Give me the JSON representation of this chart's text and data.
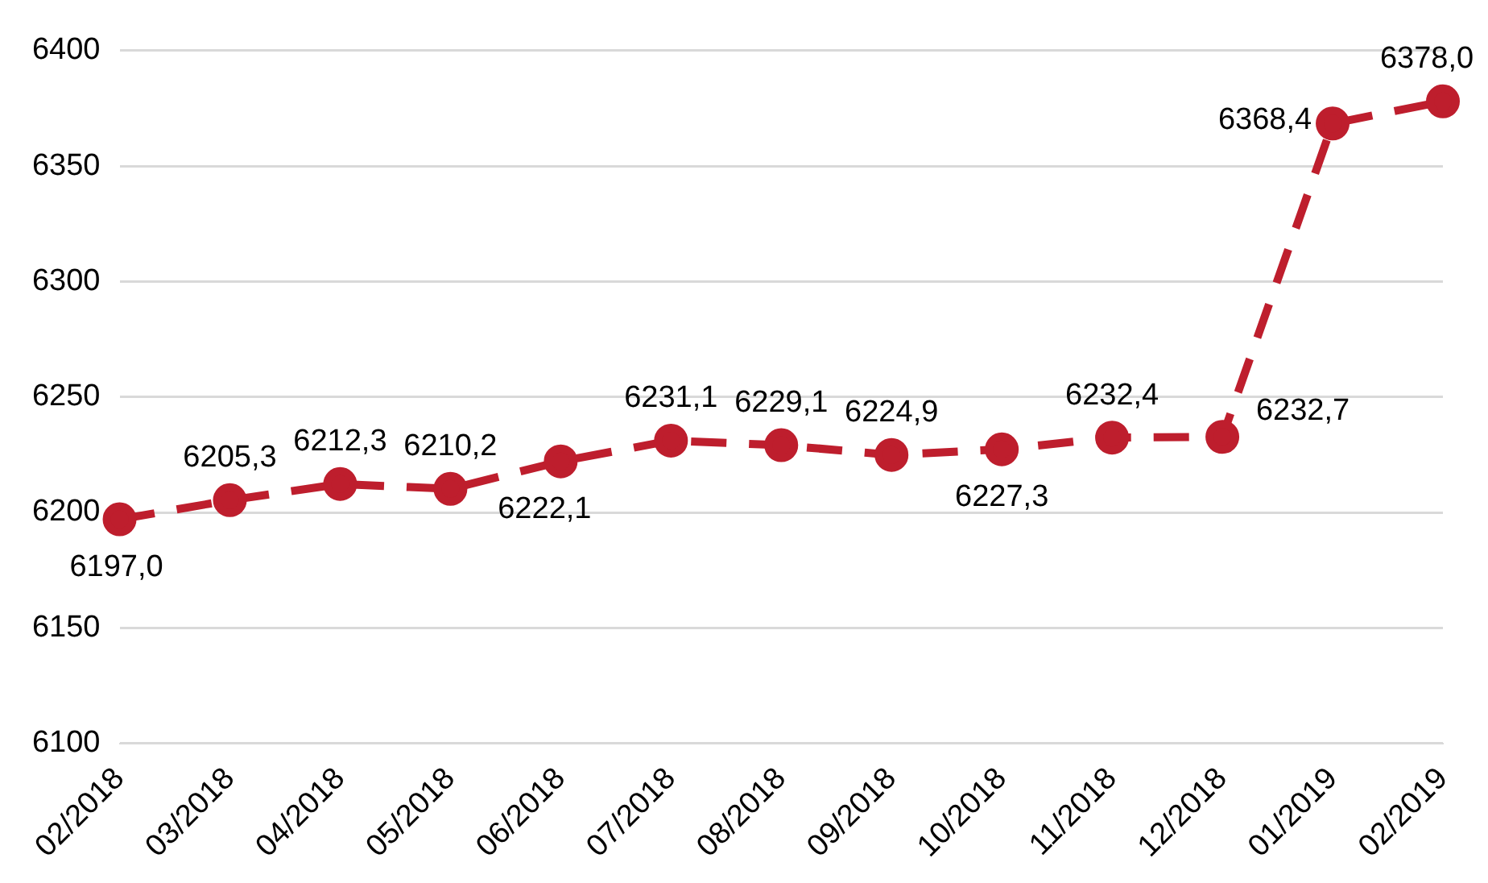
{
  "chart_data": {
    "type": "line",
    "categories": [
      "02/2018",
      "03/2018",
      "04/2018",
      "05/2018",
      "06/2018",
      "07/2018",
      "08/2018",
      "09/2018",
      "10/2018",
      "11/2018",
      "12/2018",
      "01/2019",
      "02/2019"
    ],
    "series": [
      {
        "color": "#be1e2d",
        "values": [
          6197.0,
          6205.3,
          6212.3,
          6210.2,
          6222.1,
          6231.1,
          6229.1,
          6224.9,
          6227.3,
          6232.4,
          6232.7,
          6368.4,
          6378.0
        ],
        "value_labels": [
          "6197,0",
          "6205,3",
          "6212,3",
          "6210,2",
          "6222,1",
          "6231,1",
          "6229,1",
          "6224,9",
          "6227,3",
          "6232,4",
          "6232,7",
          "6368,4",
          "6378,0"
        ]
      }
    ],
    "ylim": [
      6100,
      6400
    ],
    "yticks": [
      6100,
      6150,
      6200,
      6250,
      6300,
      6350,
      6400
    ],
    "grid": "y",
    "legend": false,
    "marker": "circle",
    "line_style": "dashed"
  }
}
